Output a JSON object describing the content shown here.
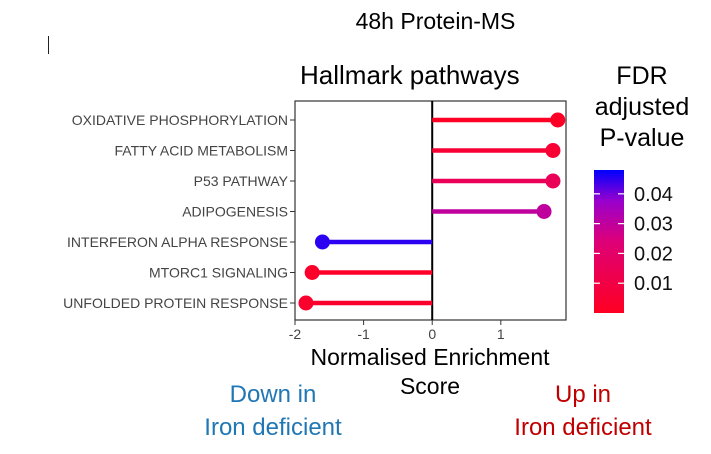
{
  "header": {
    "top_title": "48h Protein-MS"
  },
  "chart_data": {
    "type": "lollipop",
    "title": "Hallmark pathways",
    "xlabel_line1": "Normalised Enrichment",
    "xlabel_line2": "Score",
    "ylabel": "",
    "xlim": [
      -2,
      1.95
    ],
    "xticks": [
      -2,
      -1,
      0,
      1
    ],
    "xtick_labels": [
      "-2",
      "-1",
      "0",
      "1"
    ],
    "categories": [
      "OXIDATIVE PHOSPHORYLATION",
      "FATTY ACID METABOLISM",
      "P53 PATHWAY",
      "ADIPOGENESIS",
      "INTERFERON ALPHA RESPONSE",
      "MTORC1 SIGNALING",
      "UNFOLDED PROTEIN RESPONSE"
    ],
    "values": [
      1.83,
      1.76,
      1.76,
      1.63,
      -1.6,
      -1.75,
      -1.84
    ],
    "fdr": [
      0.001,
      0.005,
      0.015,
      0.03,
      0.045,
      0.002,
      0.003
    ],
    "grid": false,
    "colorbar": {
      "title_lines": [
        "FDR",
        "adjusted",
        "P-value"
      ],
      "ticks": [
        "0.04",
        "0.03",
        "0.02",
        "0.01"
      ],
      "tick_values": [
        0.04,
        0.03,
        0.02,
        0.01
      ],
      "range": [
        0.0,
        0.048
      ],
      "low_color": "#ff0022",
      "high_color": "#0000ff",
      "placement": "right"
    }
  },
  "annotations": {
    "down_line1": "Down in",
    "down_line2": "Iron deficient",
    "up_line1": "Up in",
    "up_line2": "Iron deficient"
  },
  "colors": {
    "down_annotation": "#1f77b4",
    "up_annotation": "#c00000"
  }
}
